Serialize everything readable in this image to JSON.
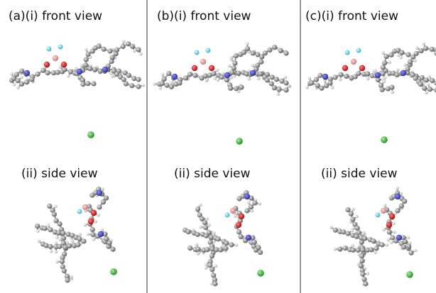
{
  "panels": [
    {
      "front_label": "(a)(i) front view",
      "side_label": "(ii) side view"
    },
    {
      "front_label": "(b)(i) front view",
      "side_label": "(ii) side view"
    },
    {
      "front_label": "(c)(i) front view",
      "side_label": "(ii) side view"
    }
  ]
}
